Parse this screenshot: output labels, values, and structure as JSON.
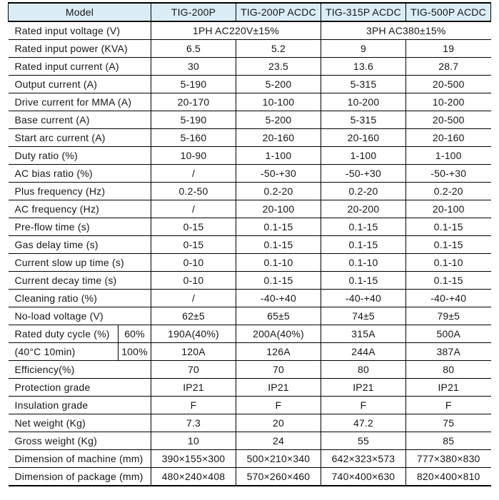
{
  "colors": {
    "header_bg": "#daedf6",
    "border": "#000000",
    "text": "#161616"
  },
  "table": {
    "header": {
      "model_label": "Model",
      "models": [
        "TIG-200P",
        "TIG-200P ACDC",
        "TIG-315P ACDC",
        "TIG-500P ACDC"
      ]
    },
    "voltage_row": {
      "label": "Rated input voltage (V)",
      "group_values": [
        "1PH AC220V±15%",
        "3PH AC380±15%"
      ]
    },
    "specs_top": [
      {
        "label": "Rated input power (KVA)",
        "values": [
          "6.5",
          "5.2",
          "9",
          "19"
        ]
      },
      {
        "label": "Rated input current (A)",
        "values": [
          "30",
          "23.5",
          "13.6",
          "28.7"
        ]
      },
      {
        "label": "Output current (A)",
        "values": [
          "5-190",
          "5-200",
          "5-315",
          "20-500"
        ]
      },
      {
        "label": "Drive current for MMA (A)",
        "values": [
          "20-170",
          "10-100",
          "10-200",
          "10-200"
        ]
      },
      {
        "label": "Base current (A)",
        "values": [
          "5-190",
          "5-200",
          "5-315",
          "20-500"
        ]
      },
      {
        "label": "Start arc current (A)",
        "values": [
          "5-160",
          "20-160",
          "20-160",
          "20-160"
        ]
      },
      {
        "label": "Duty ratio (%)",
        "values": [
          "10-90",
          "1-100",
          "1-100",
          "1-100"
        ]
      },
      {
        "label": "AC bias ratio (%)",
        "values": [
          "/",
          "-50-+30",
          "-50-+30",
          "-50-+30"
        ]
      },
      {
        "label": "Plus frequency (Hz)",
        "values": [
          "0.2-50",
          "0.2-20",
          "0.2-20",
          "0.2-20"
        ]
      },
      {
        "label": "AC frequency (Hz)",
        "values": [
          "/",
          "20-100",
          "20-200",
          "20-100"
        ]
      },
      {
        "label": "Pre-flow time (s)",
        "values": [
          "0-15",
          "0.1-15",
          "0.1-15",
          "0.1-15"
        ]
      },
      {
        "label": "Gas delay time (s)",
        "values": [
          "0-15",
          "0.1-15",
          "0.1-15",
          "0.1-15"
        ]
      },
      {
        "label": "Current slow up time (s)",
        "values": [
          "0-10",
          "0.1-10",
          "0.1-10",
          "0.1-10"
        ]
      },
      {
        "label": "Current decay time (s)",
        "values": [
          "0-10",
          "0.1-15",
          "0.1-15",
          "0.1-15"
        ]
      },
      {
        "label": "Cleaning ratio (%)",
        "values": [
          "/",
          "-40-+40",
          "-40-+40",
          "-40-+40"
        ]
      },
      {
        "label": "No-load voltage (V)",
        "values": [
          "62±5",
          "65±5",
          "74±5",
          "79±5"
        ]
      }
    ],
    "duty_rows": [
      {
        "label": "Rated duty cycle (%)",
        "sub": "60%",
        "values": [
          "190A(40%)",
          "200A(40%)",
          "315A",
          "500A"
        ]
      },
      {
        "label": "(40°C 10min)",
        "sub": "100%",
        "values": [
          "120A",
          "126A",
          "244A",
          "387A"
        ]
      }
    ],
    "specs_bottom": [
      {
        "label": "Efficiency(%)",
        "values": [
          "70",
          "70",
          "80",
          "80"
        ]
      },
      {
        "label": "Protection grade",
        "values": [
          "IP21",
          "IP21",
          "IP21",
          "IP21"
        ]
      },
      {
        "label": "Insulation grade",
        "values": [
          "F",
          "F",
          "F",
          "F"
        ]
      },
      {
        "label": "Net weight (Kg)",
        "values": [
          "7.3",
          "20",
          "47.2",
          "75"
        ]
      },
      {
        "label": "Gross weight (Kg)",
        "values": [
          "10",
          "24",
          "55",
          "85"
        ]
      },
      {
        "label": "Dimension of machine (mm)",
        "values": [
          "390×155×300",
          "500×210×340",
          "642×323×573",
          "777×380×830"
        ]
      },
      {
        "label": "Dimension of package (mm)",
        "values": [
          "480×240×408",
          "570×260×460",
          "740×400×630",
          "820×400×810"
        ]
      }
    ]
  }
}
